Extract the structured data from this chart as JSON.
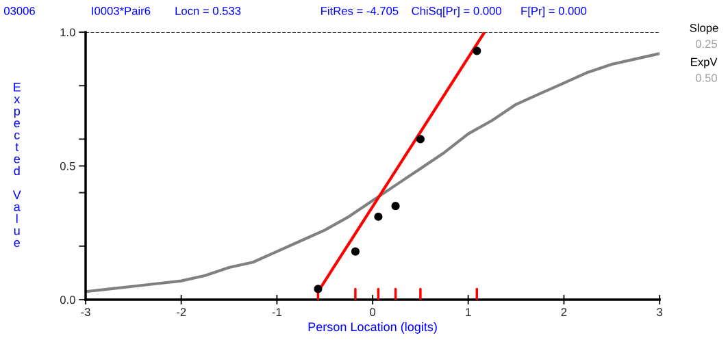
{
  "chart_data": {
    "type": "scatter",
    "xlabel": "Person Location (logits)",
    "ylabel": "Expected Value",
    "annotations": [
      "03006",
      "I0003*Pair6",
      "Locn = 0.533",
      "FitRes = -4.705",
      "ChiSq[Pr] = 0.000",
      "F[Pr] = 0.000",
      "Slope",
      "0.25",
      "ExpV",
      "0.50"
    ],
    "xlim": [
      -3,
      3
    ],
    "xticks": [
      -3,
      -2,
      -1,
      0,
      1,
      2,
      3
    ],
    "ylim": [
      0,
      1
    ],
    "yticks": [
      {
        "value": 0,
        "label": "0.0"
      },
      {
        "value": 0.2,
        "label": null
      },
      {
        "value": 0.4,
        "label": null
      },
      {
        "value": 0.5,
        "label": "0.5"
      },
      {
        "value": 0.6,
        "label": null
      },
      {
        "value": 0.8,
        "label": null
      },
      {
        "value": 1,
        "label": "1.0"
      }
    ],
    "grid": false,
    "legend": false,
    "series": [
      {
        "type": "line",
        "color": "#808080",
        "x": [
          -3,
          -2.75,
          -2.5,
          -2.25,
          -2,
          -1.75,
          -1.5,
          -1.25,
          -1,
          -0.75,
          -0.5,
          -0.25,
          0,
          0.25,
          0.5,
          0.75,
          1,
          1.25,
          1.5,
          1.75,
          2,
          2.25,
          2.5,
          2.75,
          3
        ],
        "values": [
          0.03,
          0.04,
          0.05,
          0.06,
          0.07,
          0.09,
          0.12,
          0.14,
          0.18,
          0.22,
          0.26,
          0.31,
          0.37,
          0.43,
          0.49,
          0.55,
          0.62,
          0.67,
          0.73,
          0.77,
          0.81,
          0.85,
          0.88,
          0.9,
          0.92
        ]
      },
      {
        "type": "line",
        "color": "#ff0000",
        "x": [
          -0.57,
          1.17
        ],
        "values": [
          0.03,
          1.0
        ]
      },
      {
        "type": "scatter",
        "color": "#000000",
        "marker": "circle",
        "x": [
          -0.57,
          -0.18,
          0.06,
          0.24,
          0.5,
          1.09
        ],
        "values": [
          0.04,
          0.18,
          0.31,
          0.35,
          0.6,
          0.93
        ]
      }
    ],
    "ref_lines": [
      {
        "axis": "y",
        "value": 1,
        "color": "#000000",
        "line_style": "dashed"
      }
    ]
  }
}
